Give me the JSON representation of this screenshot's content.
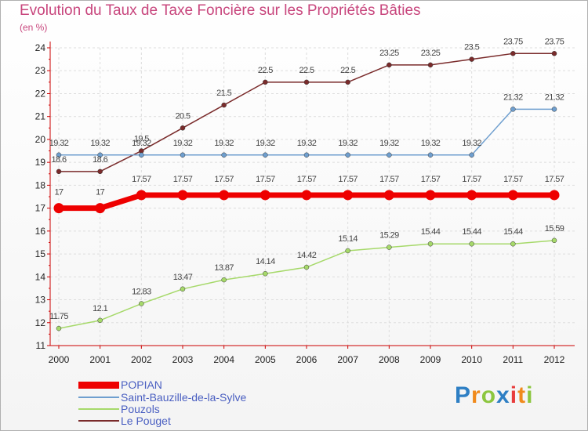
{
  "header": {
    "title": "Evolution du Taux de Taxe Foncière sur les Propriétés Bâties",
    "subtitle": "(en %)"
  },
  "chart_data": {
    "type": "line",
    "title": "Evolution du Taux de Taxe Foncière sur les Propriétés Bâties",
    "ylabel": "(en %)",
    "xlabel": "",
    "ylim": [
      11,
      24
    ],
    "yticks": [
      "11",
      "12",
      "13",
      "14",
      "15",
      "16",
      "17",
      "18",
      "19",
      "20",
      "21",
      "22",
      "23",
      "24"
    ],
    "categories": [
      "2000",
      "2001",
      "2002",
      "2003",
      "2004",
      "2005",
      "2006",
      "2007",
      "2008",
      "2009",
      "2010",
      "2011",
      "2012"
    ],
    "grid": true,
    "series": [
      {
        "name": "POPIAN",
        "color": "#ee0000",
        "values": [
          17,
          17,
          17.57,
          17.57,
          17.57,
          17.57,
          17.57,
          17.57,
          17.57,
          17.57,
          17.57,
          17.57,
          17.57
        ],
        "labels": [
          "17",
          "17",
          "17.57",
          "17.57",
          "17.57",
          "17.57",
          "17.57",
          "17.57",
          "17.57",
          "17.57",
          "17.57",
          "17.57",
          "17.57"
        ]
      },
      {
        "name": "Saint-Bauzille-de-la-Sylve",
        "color": "#6f9fcf",
        "values": [
          19.32,
          19.32,
          19.32,
          19.32,
          19.32,
          19.32,
          19.32,
          19.32,
          19.32,
          19.32,
          19.32,
          21.32,
          21.32
        ],
        "labels": [
          "19.32",
          "19.32",
          "19.32",
          "19.32",
          "19.32",
          "19.32",
          "19.32",
          "19.32",
          "19.32",
          "19.32",
          "19.32",
          "21.32",
          "21.32"
        ]
      },
      {
        "name": "Pouzols",
        "color": "#a6d96a",
        "values": [
          11.75,
          12.1,
          12.83,
          13.47,
          13.87,
          14.14,
          14.42,
          15.14,
          15.29,
          15.44,
          15.44,
          15.44,
          15.59
        ],
        "labels": [
          "11.75",
          "12.1",
          "12.83",
          "13.47",
          "13.87",
          "14.14",
          "14.42",
          "15.14",
          "15.29",
          "15.44",
          "15.44",
          "15.44",
          "15.59"
        ]
      },
      {
        "name": "Le Pouget",
        "color": "#7a2b2b",
        "values": [
          18.6,
          18.6,
          19.5,
          20.5,
          21.5,
          22.5,
          22.5,
          22.5,
          23.25,
          23.25,
          23.5,
          23.75,
          23.75
        ],
        "labels": [
          "18.6",
          "18.6",
          "19.5",
          "20.5",
          "21.5",
          "22.5",
          "22.5",
          "22.5",
          "23.25",
          "23.25",
          "23.5",
          "23.75",
          "23.75"
        ]
      }
    ]
  },
  "logo": {
    "letters": [
      "P",
      "r",
      "o",
      "x",
      "i",
      "t",
      "i"
    ],
    "colors": [
      "#2e7fc4",
      "#f08a1c",
      "#8cc63f",
      "#2e7fc4",
      "#e83c3c",
      "#f08a1c",
      "#8cc63f"
    ]
  }
}
